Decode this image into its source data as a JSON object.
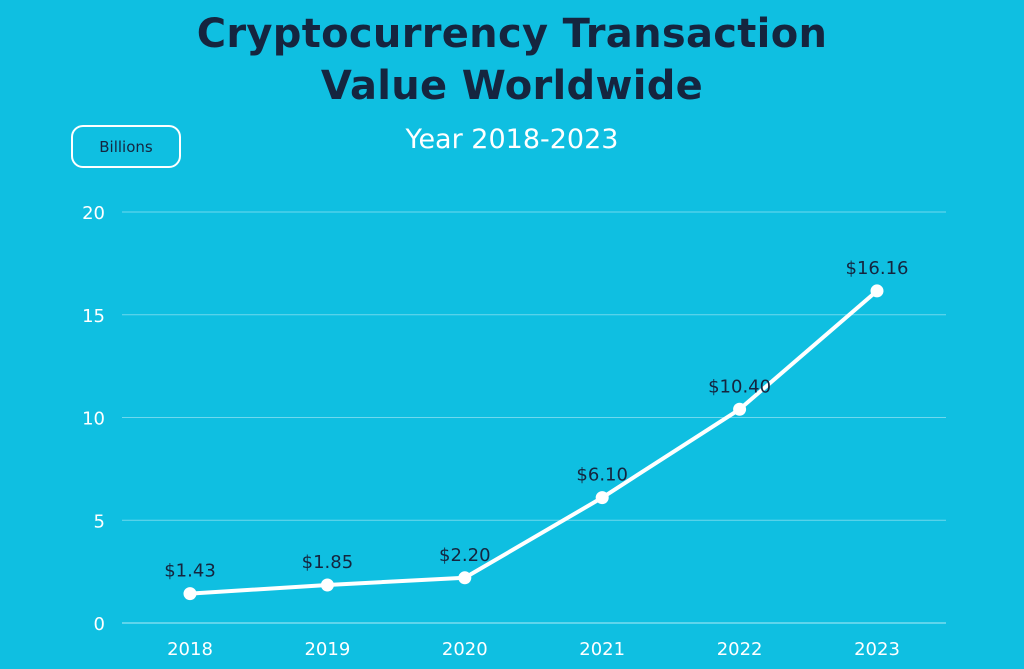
{
  "header": {
    "title_line1": "Cryptocurrency Transaction",
    "title_line2": "Value Worldwide",
    "subtitle": "Year 2018-2023",
    "unit_badge": "Billions"
  },
  "colors": {
    "background": "#0fbfe1",
    "title": "#15253f",
    "line": "#ffffff"
  },
  "chart_data": {
    "type": "line",
    "title": "Cryptocurrency Transaction Value Worldwide",
    "subtitle": "Year 2018-2023",
    "xlabel": "",
    "ylabel": "Billions",
    "categories": [
      "2018",
      "2019",
      "2020",
      "2021",
      "2022",
      "2023"
    ],
    "series": [
      {
        "values": [
          1.43,
          1.85,
          2.2,
          6.1,
          10.4,
          16.16
        ],
        "labels": [
          "$1.43",
          "$1.85",
          "$2.20",
          "$6.10",
          "$10.40",
          "$16.16"
        ]
      }
    ],
    "ylim": [
      0,
      20
    ],
    "yticks": [
      0,
      5,
      10,
      15,
      20
    ],
    "grid": true,
    "legend": "none"
  }
}
